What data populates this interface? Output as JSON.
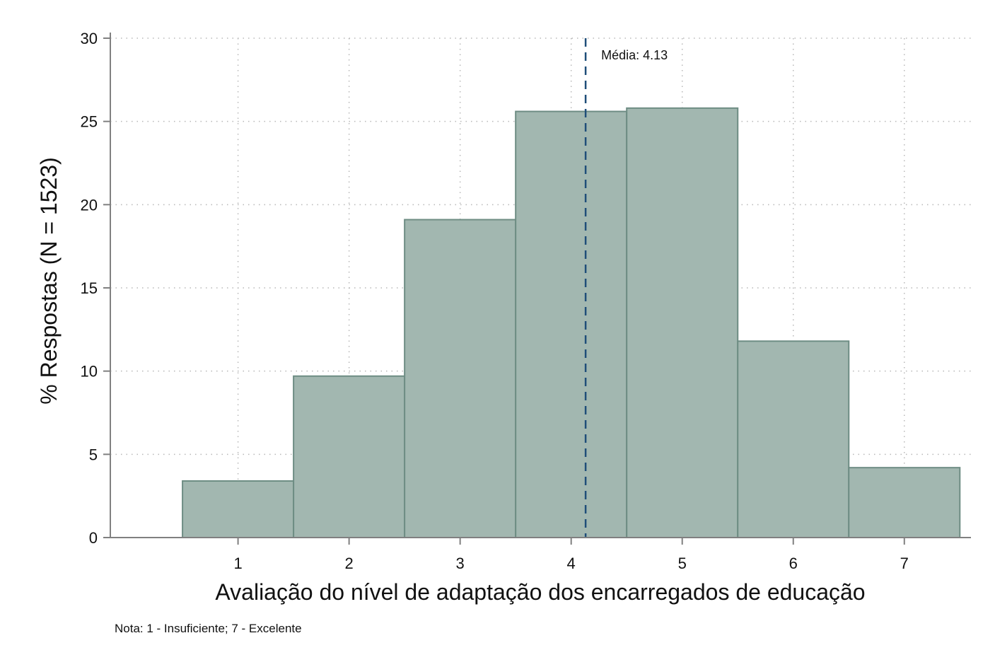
{
  "chart_data": {
    "type": "bar",
    "xlabel": "Avaliação do nível de adaptação dos encarregados de educação",
    "ylabel": "% Respostas (N = 1523)",
    "note": "Nota: 1 - Insuficiente; 7 - Excelente",
    "categories": [
      1,
      2,
      3,
      4,
      5,
      6,
      7
    ],
    "values": [
      3.4,
      9.7,
      19.1,
      25.6,
      25.8,
      11.8,
      4.2
    ],
    "xlim": [
      -0.15,
      7.6
    ],
    "ylim": [
      0,
      30
    ],
    "yticks": [
      0,
      5,
      10,
      15,
      20,
      25,
      30
    ],
    "xticks": [
      1,
      2,
      3,
      4,
      5,
      6,
      7
    ],
    "grid": true,
    "mean": {
      "value": 4.13,
      "label": "Média: 4.13"
    },
    "colors": {
      "bar_fill": "#a2b7b0",
      "bar_stroke": "#6e8d84",
      "mean_line": "#1f4e79",
      "grid": "#b8b8b8",
      "axis": "#808080"
    }
  }
}
